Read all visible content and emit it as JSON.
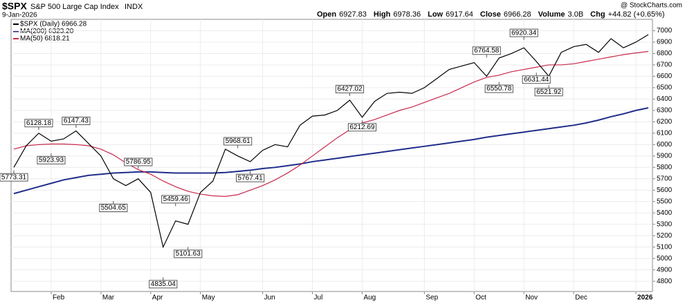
{
  "chart_data": {
    "type": "line",
    "symbol": "$SPX",
    "title": "S&P 500 Large Cap Index",
    "exchange": "INDX",
    "date": "9-Jan-2026",
    "credit": "@ StockCharts.com",
    "quote": [
      [
        "Open",
        "6927.83"
      ],
      [
        "High",
        "6978.36"
      ],
      [
        "Low",
        "6917.64"
      ],
      [
        "Close",
        "6966.28"
      ],
      [
        "Volume",
        "3.0B"
      ],
      [
        "Chg",
        "+44.82 (+0.65%)"
      ]
    ],
    "categories": [
      null,
      null,
      null,
      "Feb",
      null,
      null,
      null,
      "Mar",
      null,
      null,
      null,
      "Apr",
      null,
      null,
      null,
      "May",
      null,
      null,
      null,
      null,
      "Jun",
      null,
      null,
      null,
      "Jul",
      null,
      null,
      null,
      "Aug",
      null,
      null,
      null,
      null,
      "Sep",
      null,
      null,
      null,
      "Oct",
      null,
      null,
      null,
      "Nov",
      null,
      null,
      null,
      "Dec",
      null,
      null,
      null,
      null,
      "2026",
      null
    ],
    "series": [
      {
        "name": "$SPX (Daily) 6966.28",
        "color": "#000000",
        "values": [
          5800,
          5990,
          6100,
          6030,
          6050,
          6120,
          6010,
          5900,
          5700,
          5640,
          5700,
          5580,
          5100,
          5330,
          5300,
          5580,
          5680,
          5960,
          5900,
          5850,
          5950,
          6000,
          5980,
          6170,
          6250,
          6260,
          6300,
          6390,
          6240,
          6380,
          6450,
          6460,
          6450,
          6500,
          6580,
          6660,
          6690,
          6720,
          6600,
          6760,
          6800,
          6850,
          6730,
          6600,
          6810,
          6860,
          6880,
          6810,
          6930,
          6850,
          6900,
          6966
        ]
      },
      {
        "name": "MA(200) 6323.20",
        "color": "#1f2d8a",
        "values": [
          5570,
          5600,
          5630,
          5660,
          5690,
          5710,
          5730,
          5740,
          5750,
          5755,
          5760,
          5760,
          5755,
          5750,
          5750,
          5750,
          5750,
          5755,
          5765,
          5775,
          5790,
          5800,
          5815,
          5830,
          5850,
          5865,
          5880,
          5895,
          5910,
          5925,
          5940,
          5955,
          5970,
          5985,
          6000,
          6015,
          6030,
          6045,
          6065,
          6080,
          6095,
          6110,
          6125,
          6140,
          6155,
          6170,
          6190,
          6215,
          6245,
          6270,
          6300,
          6323
        ]
      },
      {
        "name": "MA(50) 6818.21",
        "color": "#c8284a",
        "values": [
          5960,
          5990,
          6000,
          6005,
          6005,
          6000,
          5990,
          5960,
          5910,
          5840,
          5780,
          5740,
          5680,
          5630,
          5590,
          5565,
          5550,
          5545,
          5560,
          5600,
          5640,
          5690,
          5750,
          5820,
          5900,
          5980,
          6060,
          6130,
          6190,
          6220,
          6260,
          6300,
          6330,
          6370,
          6410,
          6450,
          6500,
          6550,
          6590,
          6610,
          6640,
          6660,
          6680,
          6700,
          6700,
          6710,
          6730,
          6750,
          6770,
          6790,
          6805,
          6818
        ]
      }
    ],
    "point_labels": [
      5773.31,
      null,
      6128.18,
      5923.93,
      null,
      6147.43,
      null,
      null,
      5504.65,
      null,
      5786.95,
      null,
      4835.04,
      5459.46,
      5101.63,
      null,
      null,
      null,
      5968.61,
      5767.41,
      null,
      null,
      null,
      null,
      null,
      null,
      null,
      6427.02,
      6212.69,
      null,
      null,
      null,
      null,
      null,
      null,
      null,
      null,
      null,
      6764.58,
      6550.78,
      null,
      6920.34,
      6631.44,
      6521.92,
      null,
      null,
      null,
      null,
      null,
      null,
      null,
      null
    ],
    "ylim": [
      4710,
      7100
    ],
    "yticks": [
      4800,
      4900,
      5000,
      5100,
      5200,
      5300,
      5400,
      5500,
      5600,
      5700,
      5800,
      5900,
      6000,
      6100,
      6200,
      6300,
      6400,
      6500,
      6600,
      6700,
      6800,
      6900,
      7000
    ],
    "grid": true
  }
}
